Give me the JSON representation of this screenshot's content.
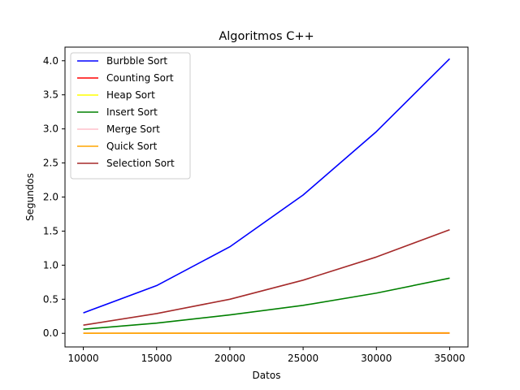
{
  "chart_data": {
    "type": "line",
    "title": "Algoritmos C++",
    "xlabel": "Datos",
    "ylabel": "Segundos",
    "x": [
      10000,
      15000,
      20000,
      25000,
      30000,
      35000
    ],
    "xlim": [
      8750,
      36250
    ],
    "ylim": [
      -0.2,
      4.2
    ],
    "xticks": [
      10000,
      15000,
      20000,
      25000,
      30000,
      35000
    ],
    "yticks": [
      0.0,
      0.5,
      1.0,
      1.5,
      2.0,
      2.5,
      3.0,
      3.5,
      4.0
    ],
    "xtick_labels": [
      "10000",
      "15000",
      "20000",
      "25000",
      "30000",
      "35000"
    ],
    "ytick_labels": [
      "0.0",
      "0.5",
      "1.0",
      "1.5",
      "2.0",
      "2.5",
      "3.0",
      "3.5",
      "4.0"
    ],
    "grid": false,
    "legend_position": "top-left",
    "series": [
      {
        "name": "Burbble Sort",
        "color": "#0000ff",
        "values": [
          0.3,
          0.7,
          1.27,
          2.03,
          2.96,
          4.03
        ]
      },
      {
        "name": "Counting Sort",
        "color": "#ff0000",
        "values": [
          0.001,
          0.001,
          0.002,
          0.002,
          0.003,
          0.003
        ]
      },
      {
        "name": "Heap Sort",
        "color": "#ffff00",
        "values": [
          0.002,
          0.003,
          0.004,
          0.005,
          0.006,
          0.007
        ]
      },
      {
        "name": "Insert Sort",
        "color": "#008000",
        "values": [
          0.06,
          0.15,
          0.27,
          0.41,
          0.59,
          0.81
        ]
      },
      {
        "name": "Merge Sort",
        "color": "#ffc0cb",
        "values": [
          0.003,
          0.004,
          0.005,
          0.007,
          0.008,
          0.009
        ]
      },
      {
        "name": "Quick Sort",
        "color": "#ffa500",
        "values": [
          0.001,
          0.002,
          0.002,
          0.003,
          0.004,
          0.005
        ]
      },
      {
        "name": "Selection Sort",
        "color": "#a52a2a",
        "values": [
          0.12,
          0.29,
          0.5,
          0.78,
          1.12,
          1.52
        ]
      }
    ]
  }
}
